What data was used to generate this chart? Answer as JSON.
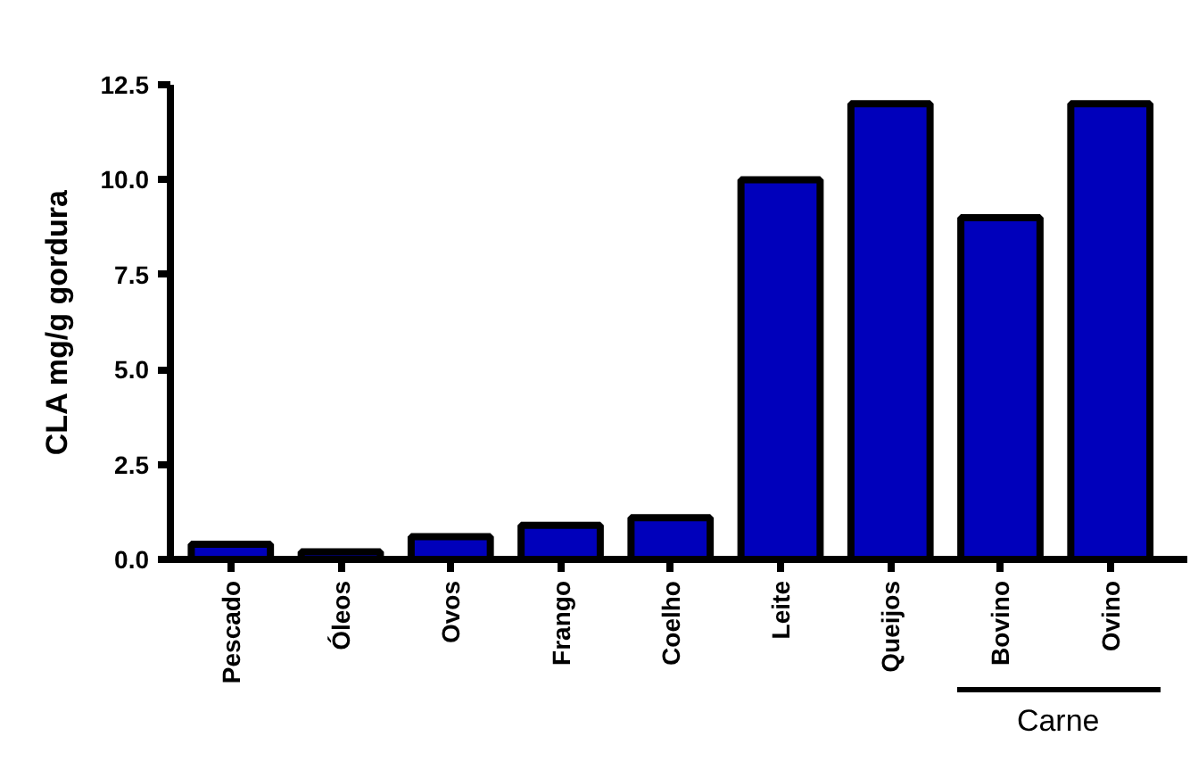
{
  "chart_data": {
    "type": "bar",
    "ylabel": "CLA mg/g gordura",
    "categories": [
      "Pescado",
      "Óleos",
      "Ovos",
      "Frango",
      "Coelho",
      "Leite",
      "Queijos",
      "Bovino",
      "Ovino"
    ],
    "values": [
      0.4,
      0.2,
      0.6,
      0.9,
      1.1,
      10,
      12,
      9,
      12
    ],
    "color": "#0000bb",
    "ylim": [
      0,
      12.5
    ],
    "yticks": [
      {
        "value": 0,
        "label": "0.0"
      },
      {
        "value": 2.5,
        "label": "2.5"
      },
      {
        "value": 5,
        "label": "5.0"
      },
      {
        "value": 7.5,
        "label": "7.5"
      },
      {
        "value": 10,
        "label": "10.0"
      },
      {
        "value": 12.5,
        "label": "12.5"
      }
    ],
    "annotations": [
      "Carne"
    ],
    "grid": false
  }
}
